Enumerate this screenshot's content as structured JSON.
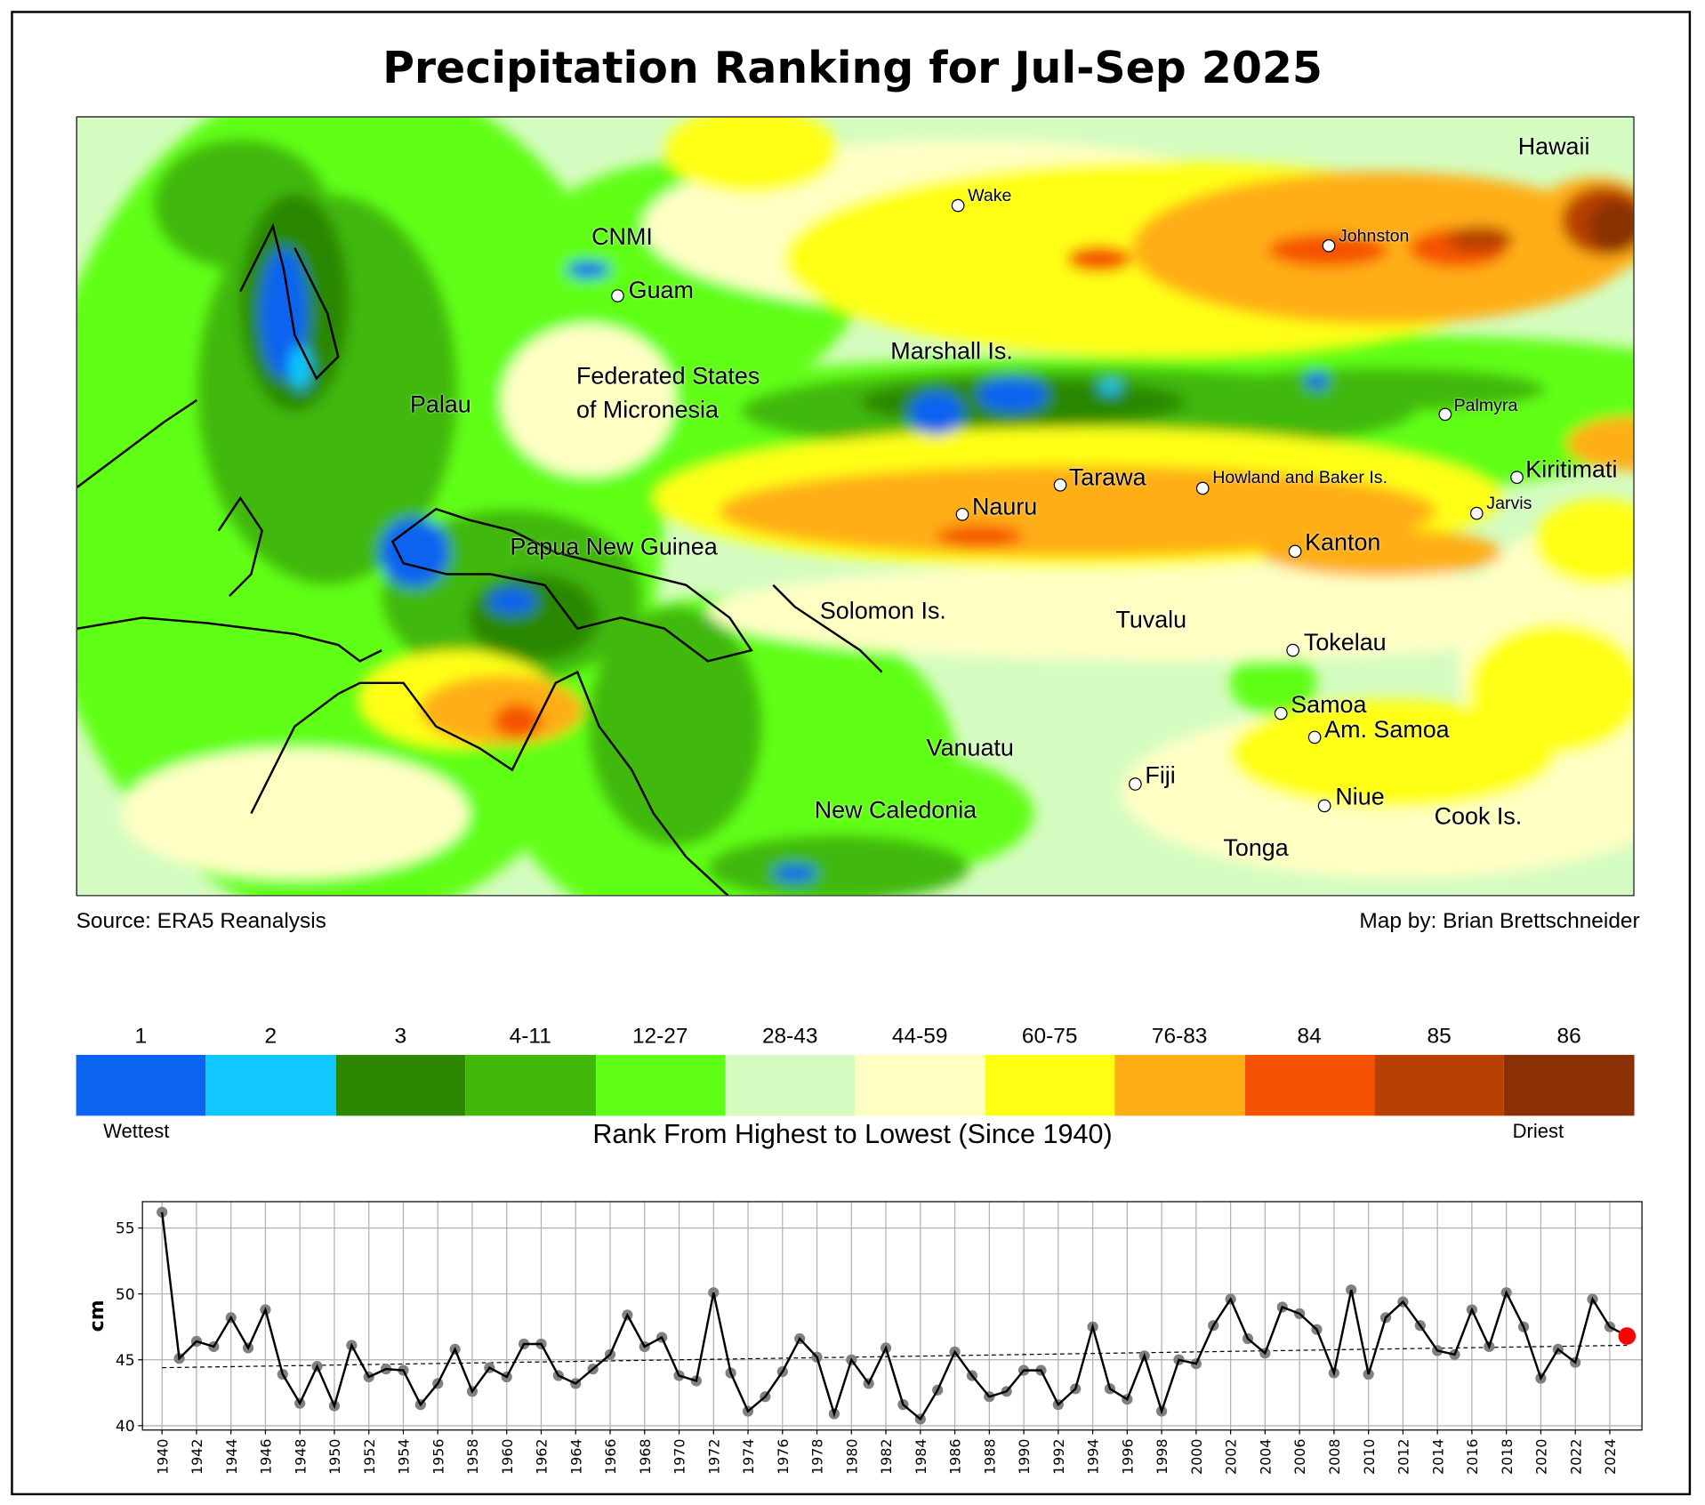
{
  "title": "Precipitation Ranking for Jul-Sep 2025",
  "source": "Source: ERA5 Reanalysis",
  "credit": "Map by: Brian Brettschneider",
  "map": {
    "labels": [
      {
        "text": "Hawaii"
      },
      {
        "text": "Wake"
      },
      {
        "text": "CNMI"
      },
      {
        "text": "Guam"
      },
      {
        "text": "Johnston"
      },
      {
        "text": "Marshall Is."
      },
      {
        "text": "Federated States"
      },
      {
        "text": "of Micronesia"
      },
      {
        "text": "Palau"
      },
      {
        "text": "Palmyra"
      },
      {
        "text": "Tarawa"
      },
      {
        "text": "Howland and Baker Is."
      },
      {
        "text": "Kiritimati"
      },
      {
        "text": "Jarvis"
      },
      {
        "text": "Nauru"
      },
      {
        "text": "Kanton"
      },
      {
        "text": "Papua New Guinea"
      },
      {
        "text": "Solomon Is."
      },
      {
        "text": "Tuvalu"
      },
      {
        "text": "Tokelau"
      },
      {
        "text": "Samoa"
      },
      {
        "text": "Am. Samoa"
      },
      {
        "text": "Vanuatu"
      },
      {
        "text": "Fiji"
      },
      {
        "text": "New Caledonia"
      },
      {
        "text": "Niue"
      },
      {
        "text": "Cook Is."
      },
      {
        "text": "Tonga"
      }
    ]
  },
  "colorbar": {
    "title": "Rank From Highest to Lowest (Since 1940)",
    "wettest": "Wettest",
    "driest": "Driest",
    "bins": [
      {
        "label": "1",
        "color": "#0a64f0"
      },
      {
        "label": "2",
        "color": "#10c8ff"
      },
      {
        "label": "3",
        "color": "#2b8800"
      },
      {
        "label": "4-11",
        "color": "#40b808"
      },
      {
        "label": "12-27",
        "color": "#60ff18"
      },
      {
        "label": "28-43",
        "color": "#d4fcc0"
      },
      {
        "label": "44-59",
        "color": "#ffffc4"
      },
      {
        "label": "60-75",
        "color": "#ffff14"
      },
      {
        "label": "76-83",
        "color": "#ffae14"
      },
      {
        "label": "84",
        "color": "#f55204"
      },
      {
        "label": "85",
        "color": "#b84002"
      },
      {
        "label": "86",
        "color": "#8a3002"
      }
    ]
  },
  "chart_data": {
    "type": "line",
    "title": "",
    "xlabel": "",
    "ylabel": "cm",
    "ylim": [
      39.67,
      57.0
    ],
    "xlim": [
      1938.8,
      2026.0
    ],
    "yticks": [
      40,
      45,
      50,
      55
    ],
    "grid": true,
    "x": [
      1940,
      1941,
      1942,
      1943,
      1944,
      1945,
      1946,
      1947,
      1948,
      1949,
      1950,
      1951,
      1952,
      1953,
      1954,
      1955,
      1956,
      1957,
      1958,
      1959,
      1960,
      1961,
      1962,
      1963,
      1964,
      1965,
      1966,
      1967,
      1968,
      1969,
      1970,
      1971,
      1972,
      1973,
      1974,
      1975,
      1976,
      1977,
      1978,
      1979,
      1980,
      1981,
      1982,
      1983,
      1984,
      1985,
      1986,
      1987,
      1988,
      1989,
      1990,
      1991,
      1992,
      1993,
      1994,
      1995,
      1996,
      1997,
      1998,
      1999,
      2000,
      2001,
      2002,
      2003,
      2004,
      2005,
      2006,
      2007,
      2008,
      2009,
      2010,
      2011,
      2012,
      2013,
      2014,
      2015,
      2016,
      2017,
      2018,
      2019,
      2020,
      2021,
      2022,
      2023,
      2024,
      2025
    ],
    "values": [
      56.2,
      45.1,
      46.4,
      46.0,
      48.2,
      45.9,
      48.8,
      43.9,
      41.7,
      44.5,
      41.5,
      46.1,
      43.7,
      44.3,
      44.2,
      41.6,
      43.2,
      45.8,
      42.6,
      44.4,
      43.7,
      46.2,
      46.2,
      43.8,
      43.2,
      44.3,
      45.4,
      48.4,
      46.0,
      46.7,
      43.8,
      43.4,
      50.1,
      44.0,
      41.1,
      42.2,
      44.1,
      46.6,
      45.2,
      40.9,
      45.0,
      43.2,
      45.9,
      41.6,
      40.5,
      42.7,
      45.6,
      43.8,
      42.2,
      42.6,
      44.2,
      44.2,
      41.6,
      42.8,
      47.5,
      42.8,
      42.0,
      45.3,
      41.1,
      45.0,
      44.7,
      47.6,
      49.6,
      46.6,
      45.5,
      49.0,
      48.5,
      47.3,
      44.0,
      50.3,
      43.9,
      48.2,
      49.4,
      47.6,
      45.7,
      45.4,
      48.8,
      46.0,
      50.1,
      47.5,
      43.6,
      45.8,
      44.8,
      49.6,
      47.5,
      46.8
    ],
    "highlight": {
      "year": 2025,
      "color": "#ff0000"
    },
    "trend": {
      "start": 44.4,
      "end": 46.1,
      "style": "dashed"
    },
    "xtick_labels": [
      "1940",
      "1942",
      "1944",
      "1946",
      "1948",
      "1950",
      "1952",
      "1954",
      "1956",
      "1958",
      "1960",
      "1962",
      "1964",
      "1966",
      "1968",
      "1970",
      "1972",
      "1974",
      "1976",
      "1978",
      "1980",
      "1982",
      "1984",
      "1986",
      "1988",
      "1990",
      "1992",
      "1994",
      "1996",
      "1998",
      "2000",
      "2002",
      "2004",
      "2006",
      "2008",
      "2010",
      "2012",
      "2014",
      "2016",
      "2018",
      "2020",
      "2022",
      "2024"
    ]
  }
}
